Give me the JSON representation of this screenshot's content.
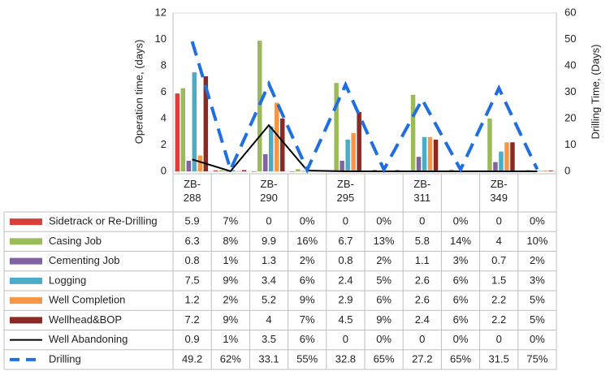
{
  "chart_data": {
    "type": "bar",
    "y_label": "Operation time, (days)",
    "y2_label": "Drilling Time, (Days)",
    "categories": [
      "ZB-288",
      null,
      "ZB-290",
      null,
      "ZB-295",
      null,
      "ZB-311",
      null,
      "ZB-349",
      null
    ],
    "ylim": [
      0,
      12
    ],
    "yticks": [
      0,
      2,
      4,
      6,
      8,
      10,
      12
    ],
    "y2lim": [
      0,
      60
    ],
    "y2ticks": [
      0,
      10,
      20,
      30,
      40,
      50,
      60
    ],
    "grid": false,
    "series": [
      {
        "name": "Sidetrack or Re-Drilling",
        "type": "bar",
        "color": "#d9403a",
        "values": [
          5.9,
          0.07,
          0,
          0,
          0,
          0,
          0,
          0,
          0,
          0
        ],
        "value_labels": [
          "5.9",
          "7%",
          "0",
          "0%",
          "0",
          "0%",
          "0",
          "0%",
          "0",
          "0%"
        ]
      },
      {
        "name": "Casing Job",
        "type": "bar",
        "color": "#9bbb59",
        "values": [
          6.3,
          0.08,
          9.9,
          0.16,
          6.7,
          0.13,
          5.8,
          0.14,
          4,
          0.1
        ],
        "value_labels": [
          "6.3",
          "8%",
          "9.9",
          "16%",
          "6.7",
          "13%",
          "5.8",
          "14%",
          "4",
          "10%"
        ]
      },
      {
        "name": "Cementing Job",
        "type": "bar",
        "color": "#8064a2",
        "values": [
          0.8,
          0.01,
          1.3,
          0.02,
          0.8,
          0.02,
          1.1,
          0.03,
          0.7,
          0.02
        ],
        "value_labels": [
          "0.8",
          "1%",
          "1.3",
          "2%",
          "0.8",
          "2%",
          "1.1",
          "3%",
          "0.7",
          "2%"
        ]
      },
      {
        "name": "Logging",
        "type": "bar",
        "color": "#4bacc6",
        "values": [
          7.5,
          0.09,
          3.4,
          0.06,
          2.4,
          0.05,
          2.6,
          0.06,
          1.5,
          0.03
        ],
        "value_labels": [
          "7.5",
          "9%",
          "3.4",
          "6%",
          "2.4",
          "5%",
          "2.6",
          "6%",
          "1.5",
          "3%"
        ]
      },
      {
        "name": "Well Completion",
        "type": "bar",
        "color": "#f79646",
        "values": [
          1.2,
          0.02,
          5.2,
          0.09,
          2.9,
          0.06,
          2.6,
          0.06,
          2.2,
          0.05
        ],
        "value_labels": [
          "1.2",
          "2%",
          "5.2",
          "9%",
          "2.9",
          "6%",
          "2.6",
          "6%",
          "2.2",
          "5%"
        ]
      },
      {
        "name": "Wellhead&BOP",
        "type": "bar",
        "color": "#8b2a25",
        "values": [
          7.2,
          0.09,
          4,
          0.07,
          4.5,
          0.09,
          2.4,
          0.06,
          2.2,
          0.05
        ],
        "value_labels": [
          "7.2",
          "9%",
          "4",
          "7%",
          "4.5",
          "9%",
          "2.4",
          "6%",
          "2.2",
          "5%"
        ]
      },
      {
        "name": "Well Abandoning",
        "type": "line",
        "color": "#000000",
        "values": [
          0.9,
          0.01,
          3.5,
          0.06,
          0,
          0,
          0,
          0,
          0,
          0
        ],
        "value_labels": [
          "0.9",
          "1%",
          "3.5",
          "6%",
          "0",
          "0%",
          "0",
          "0%",
          "0",
          "0%"
        ]
      },
      {
        "name": "Drilling",
        "type": "line",
        "dashed": true,
        "axis": "y2",
        "color": "#1f6fe0",
        "values": [
          49.2,
          0.62,
          33.1,
          0.55,
          32.8,
          0.65,
          27.2,
          0.65,
          31.5,
          0.75
        ],
        "value_labels": [
          "49.2",
          "62%",
          "33.1",
          "55%",
          "32.8",
          "65%",
          "27.2",
          "65%",
          "31.5",
          "75%"
        ]
      }
    ]
  }
}
